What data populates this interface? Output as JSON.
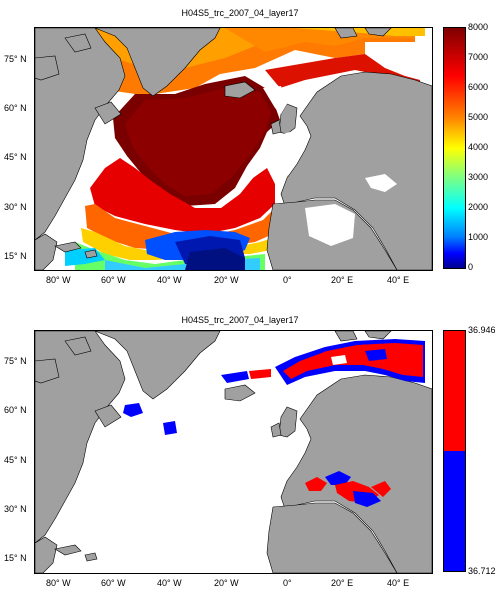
{
  "top": {
    "title": "H04S5_trc_2007_04_layer17",
    "lat_ticks": [
      "75° N",
      "60° N",
      "45° N",
      "30° N",
      "15° N"
    ],
    "lon_ticks": [
      "80° W",
      "60° W",
      "40° W",
      "20° W",
      "0°",
      "20° E",
      "40° E"
    ],
    "colorbar": {
      "ticks": [
        "8000",
        "7000",
        "6000",
        "5000",
        "4000",
        "3000",
        "2000",
        "1000",
        "0"
      ],
      "range": [
        0,
        8000
      ],
      "colormap": "jet"
    }
  },
  "bottom": {
    "title": "H04S5_trc_2007_04_layer17",
    "lat_ticks": [
      "75° N",
      "60° N",
      "45° N",
      "30° N",
      "15° N"
    ],
    "lon_ticks": [
      "80° W",
      "60° W",
      "40° W",
      "20° W",
      "0°",
      "20° E",
      "40° E"
    ],
    "colorbar": {
      "max_label": "36.946",
      "min_label": "36.712",
      "colors": [
        "#ff0000",
        "#0000ff"
      ]
    }
  },
  "colors": {
    "land": "#a0a0a0",
    "ocean_nodata": "#ffffff",
    "high": "#ff0000",
    "low": "#0000ff"
  }
}
